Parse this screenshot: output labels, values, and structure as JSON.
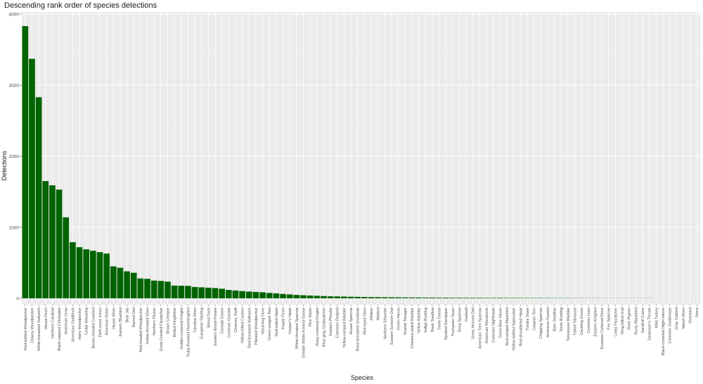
{
  "chart_data": {
    "type": "bar",
    "title": "Descending rank order of species detections",
    "xlabel": "Species",
    "ylabel": "Detections",
    "ylim": [
      0,
      4000
    ],
    "yticks": [
      0,
      1000,
      2000,
      3000,
      4000
    ],
    "grid": true,
    "bar_color": "#006400",
    "panel_color": "#ebebeb",
    "categories": [
      "Red-bellied Woodpecker",
      "Downy Woodpecker",
      "White-breasted Nuthatch",
      "House Finch",
      "Northern Cardinal",
      "Black-capped Chickadee",
      "American Crow",
      "American Goldfinch",
      "Hairy Woodpecker",
      "Cedar Waxwing",
      "Brown-headed Cowbird",
      "Dark-eyed Junco",
      "American Robin",
      "House Wren",
      "Eastern Bluebird",
      "Blue Jay",
      "Barred Owl",
      "Red-headed Woodpecker",
      "Yellow-throated Vireo",
      "Northern Flicker",
      "Great Crested Flycatcher",
      "Brown Creeper",
      "Belted Kingfisher",
      "Golden-crowned Kinglet",
      "Ruby-throated Hummingbird",
      "Carolina Wren",
      "European Starling",
      "Wood Duck",
      "Eastern Wood-Pewee",
      "Canada Goose",
      "Common Grackle",
      "Chimney Swift",
      "Yellow-billed Cuckoo",
      "Red-breasted Nuthatch",
      "Pileated Woodpecker",
      "Mourning Dove",
      "Green-winged Teal",
      "Red-tailed Hawk",
      "Purple Finch",
      "Cooper's Hawk",
      "White-throated Sparrow",
      "Greater White-fronted Goose",
      "Pine Siskin",
      "Ruby-crowned Kinglet",
      "Blue-gray Gnatcatcher",
      "Eastern Phoebe",
      "Common Redpoll",
      "Yellow-rumped Warbler",
      "House Sparrow",
      "Rose-breasted Grosbeak",
      "Red-eyed Vireo",
      "Killdeer",
      "Mallard",
      "Northern Shoveler",
      "Eastern Screech-Owl",
      "Green Heron",
      "Scarlet Tanager",
      "Chestnut-sided Warbler",
      "Yellow Warbler",
      "Indigo Bunting",
      "Bank Swallow",
      "Snow Goose",
      "Spotted Sandpiper",
      "Trumpeter Swan",
      "Song Sparrow",
      "Gadwall",
      "Great Horned Owl",
      "American Tree Sparrow",
      "American Woodcock",
      "Common Nighthawk",
      "Great Blue Heron",
      "Red-winged Blackbird",
      "Yellow-bellied Sapsucker",
      "Red-shouldered Hawk",
      "Tundra Swan",
      "Caspian Tern",
      "Chipping Sparrow",
      "American Kestrel",
      "Barn Swallow",
      "Snow Bunting",
      "Tennessee Warbler",
      "Tufted Titmouse",
      "Cackling Goose",
      "Common Loon",
      "Eastern Kingbird",
      "Eurasian Collared-Dove",
      "Fox Sparrow",
      "Least Flycatcher",
      "Ring-billed Gull",
      "Rock Pigeon",
      "Rusty Blackbird",
      "Sandhill Crane",
      "Swainson's Thrush",
      "Wild Turkey",
      "Black-crowned Night-Heron",
      "Common Goldeneye",
      "Gray Catbird",
      "Marsh Wren",
      "Ovenbird",
      "Veery"
    ],
    "values": [
      3830,
      3370,
      2830,
      1650,
      1590,
      1530,
      1140,
      790,
      720,
      690,
      670,
      650,
      630,
      450,
      430,
      380,
      360,
      280,
      275,
      250,
      245,
      235,
      180,
      178,
      176,
      160,
      155,
      150,
      145,
      135,
      118,
      110,
      102,
      96,
      90,
      85,
      76,
      70,
      62,
      55,
      48,
      44,
      40,
      36,
      32,
      29,
      27,
      25,
      23,
      21,
      19,
      18,
      17,
      16,
      15,
      14,
      13,
      12,
      12,
      11,
      11,
      10,
      10,
      9,
      9,
      8,
      8,
      8,
      7,
      7,
      7,
      6,
      6,
      6,
      5,
      5,
      5,
      5,
      4,
      4,
      4,
      3,
      3,
      3,
      3,
      2,
      2,
      2,
      2,
      2,
      2,
      2,
      2,
      1,
      1,
      1,
      1,
      1,
      1,
      1
    ]
  }
}
